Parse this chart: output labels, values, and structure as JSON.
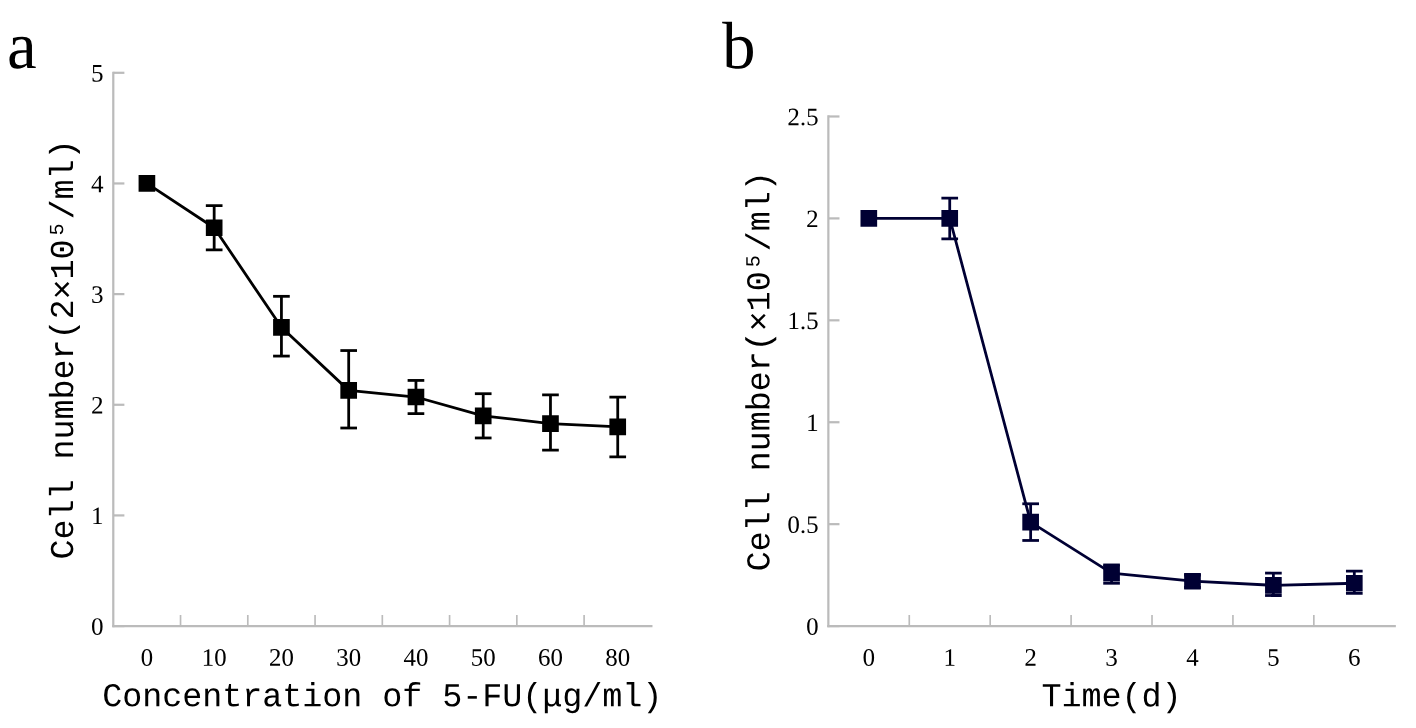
{
  "chart_data": [
    {
      "type": "line",
      "title": "a",
      "xlabel": "Concentration of 5-FU(μg/ml)",
      "ylabel": "Cell number(2×10⁵/ml)",
      "categories": [
        "0",
        "10",
        "20",
        "30",
        "40",
        "50",
        "60",
        "80"
      ],
      "series": [
        {
          "color": "#000000",
          "values": [
            4.0,
            3.6,
            2.7,
            2.13,
            2.07,
            1.9,
            1.83,
            1.8
          ],
          "errors": [
            null,
            [
              3.4,
              3.8
            ],
            [
              2.44,
              2.98
            ],
            [
              1.79,
              2.49
            ],
            [
              1.92,
              2.22
            ],
            [
              1.7,
              2.1
            ],
            [
              1.59,
              2.09
            ],
            [
              1.53,
              2.07
            ]
          ]
        }
      ],
      "ylim": [
        0,
        5
      ],
      "yticks": [
        0,
        1,
        2,
        3,
        4,
        5
      ],
      "marker": "square",
      "line_style": "solid",
      "grid": false,
      "legend": false
    },
    {
      "type": "line",
      "title": "b",
      "xlabel": "Time(d)",
      "ylabel": "Cell number(×10⁵/ml)",
      "categories": [
        "0",
        "1",
        "2",
        "3",
        "4",
        "5",
        "6"
      ],
      "series": [
        {
          "color": "#000033",
          "values": [
            2.0,
            2.0,
            0.51,
            0.26,
            0.22,
            0.2,
            0.21
          ],
          "errors": [
            null,
            [
              1.9,
              2.1
            ],
            [
              0.42,
              0.6
            ],
            [
              0.21,
              0.3
            ],
            [
              0.19,
              0.25
            ],
            [
              0.15,
              0.26
            ],
            [
              0.16,
              0.27
            ]
          ]
        }
      ],
      "ylim": [
        0,
        2.5
      ],
      "yticks": [
        0,
        0.5,
        1,
        1.5,
        2,
        2.5
      ],
      "marker": "square",
      "line_style": "solid",
      "grid": false,
      "legend": false
    }
  ]
}
